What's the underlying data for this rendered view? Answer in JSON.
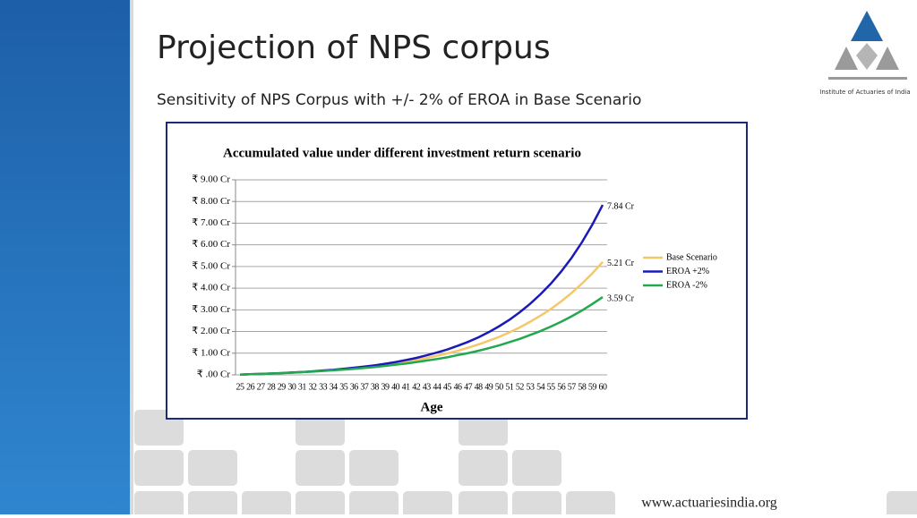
{
  "header": {
    "title": "Projection of NPS corpus",
    "subtitle": "Sensitivity of NPS Corpus with +/- 2% of EROA in Base Scenario"
  },
  "logo": {
    "text": "Institute of Actuaries of India"
  },
  "footer": {
    "url": "www.actuariesindia.org"
  },
  "chart_data": {
    "type": "line",
    "title": "Accumulated value under different investment return scenario",
    "x_label": "Age",
    "categories": [
      25,
      26,
      27,
      28,
      29,
      30,
      31,
      32,
      33,
      34,
      35,
      36,
      37,
      38,
      39,
      40,
      41,
      42,
      43,
      44,
      45,
      46,
      47,
      48,
      49,
      50,
      51,
      52,
      53,
      54,
      55,
      56,
      57,
      58,
      59,
      60
    ],
    "ylim": [
      0,
      9
    ],
    "yticks": [
      {
        "value": 0,
        "label": "₹ .00 Cr"
      },
      {
        "value": 1,
        "label": "₹ 1.00 Cr"
      },
      {
        "value": 2,
        "label": "₹ 2.00 Cr"
      },
      {
        "value": 3,
        "label": "₹ 3.00 Cr"
      },
      {
        "value": 4,
        "label": "₹ 4.00 Cr"
      },
      {
        "value": 5,
        "label": "₹ 5.00 Cr"
      },
      {
        "value": 6,
        "label": "₹ 6.00 Cr"
      },
      {
        "value": 7,
        "label": "₹ 7.00 Cr"
      },
      {
        "value": 8,
        "label": "₹ 8.00 Cr"
      },
      {
        "value": 9,
        "label": "₹ 9.00 Cr"
      }
    ],
    "grid": true,
    "legend": "right",
    "series": [
      {
        "name": "Base Scenario",
        "color": "#f5c76b",
        "values": [
          0.01,
          0.03,
          0.05,
          0.06,
          0.09,
          0.11,
          0.13,
          0.16,
          0.19,
          0.23,
          0.27,
          0.31,
          0.36,
          0.41,
          0.47,
          0.54,
          0.61,
          0.69,
          0.78,
          0.88,
          0.99,
          1.11,
          1.25,
          1.4,
          1.57,
          1.75,
          1.96,
          2.19,
          2.45,
          2.73,
          3.04,
          3.39,
          3.78,
          4.21,
          4.68,
          5.21
        ],
        "value_labels": [
          null,
          null,
          null,
          null,
          null,
          null,
          null,
          null,
          null,
          null,
          null,
          null,
          null,
          null,
          null,
          null,
          null,
          null,
          null,
          null,
          null,
          null,
          null,
          null,
          null,
          null,
          null,
          null,
          null,
          null,
          null,
          null,
          null,
          null,
          null,
          "5.21 Cr"
        ]
      },
      {
        "name": "EROA +2%",
        "color": "#1a1ab8",
        "values": [
          0.01,
          0.03,
          0.04,
          0.06,
          0.08,
          0.11,
          0.13,
          0.16,
          0.2,
          0.23,
          0.28,
          0.33,
          0.38,
          0.44,
          0.51,
          0.59,
          0.68,
          0.78,
          0.9,
          1.03,
          1.17,
          1.34,
          1.52,
          1.73,
          1.97,
          2.24,
          2.54,
          2.89,
          3.28,
          3.72,
          4.21,
          4.77,
          5.4,
          6.12,
          6.93,
          7.84
        ],
        "value_labels": [
          null,
          null,
          null,
          null,
          null,
          null,
          null,
          null,
          null,
          null,
          null,
          null,
          null,
          null,
          null,
          null,
          null,
          null,
          null,
          null,
          null,
          null,
          null,
          null,
          null,
          null,
          null,
          null,
          null,
          null,
          null,
          null,
          null,
          null,
          null,
          "7.84  Cr"
        ]
      },
      {
        "name": "EROA -2%",
        "color": "#22a84f",
        "values": [
          0.01,
          0.03,
          0.04,
          0.06,
          0.08,
          0.1,
          0.13,
          0.15,
          0.18,
          0.21,
          0.24,
          0.28,
          0.32,
          0.36,
          0.41,
          0.47,
          0.52,
          0.59,
          0.66,
          0.73,
          0.81,
          0.91,
          1.0,
          1.11,
          1.23,
          1.36,
          1.51,
          1.66,
          1.84,
          2.02,
          2.23,
          2.45,
          2.7,
          2.97,
          3.27,
          3.59
        ],
        "value_labels": [
          null,
          null,
          null,
          null,
          null,
          null,
          null,
          null,
          null,
          null,
          null,
          null,
          null,
          null,
          null,
          null,
          null,
          null,
          null,
          null,
          null,
          null,
          null,
          null,
          null,
          null,
          null,
          null,
          null,
          null,
          null,
          null,
          null,
          null,
          null,
          "3.59  Cr"
        ]
      }
    ]
  }
}
